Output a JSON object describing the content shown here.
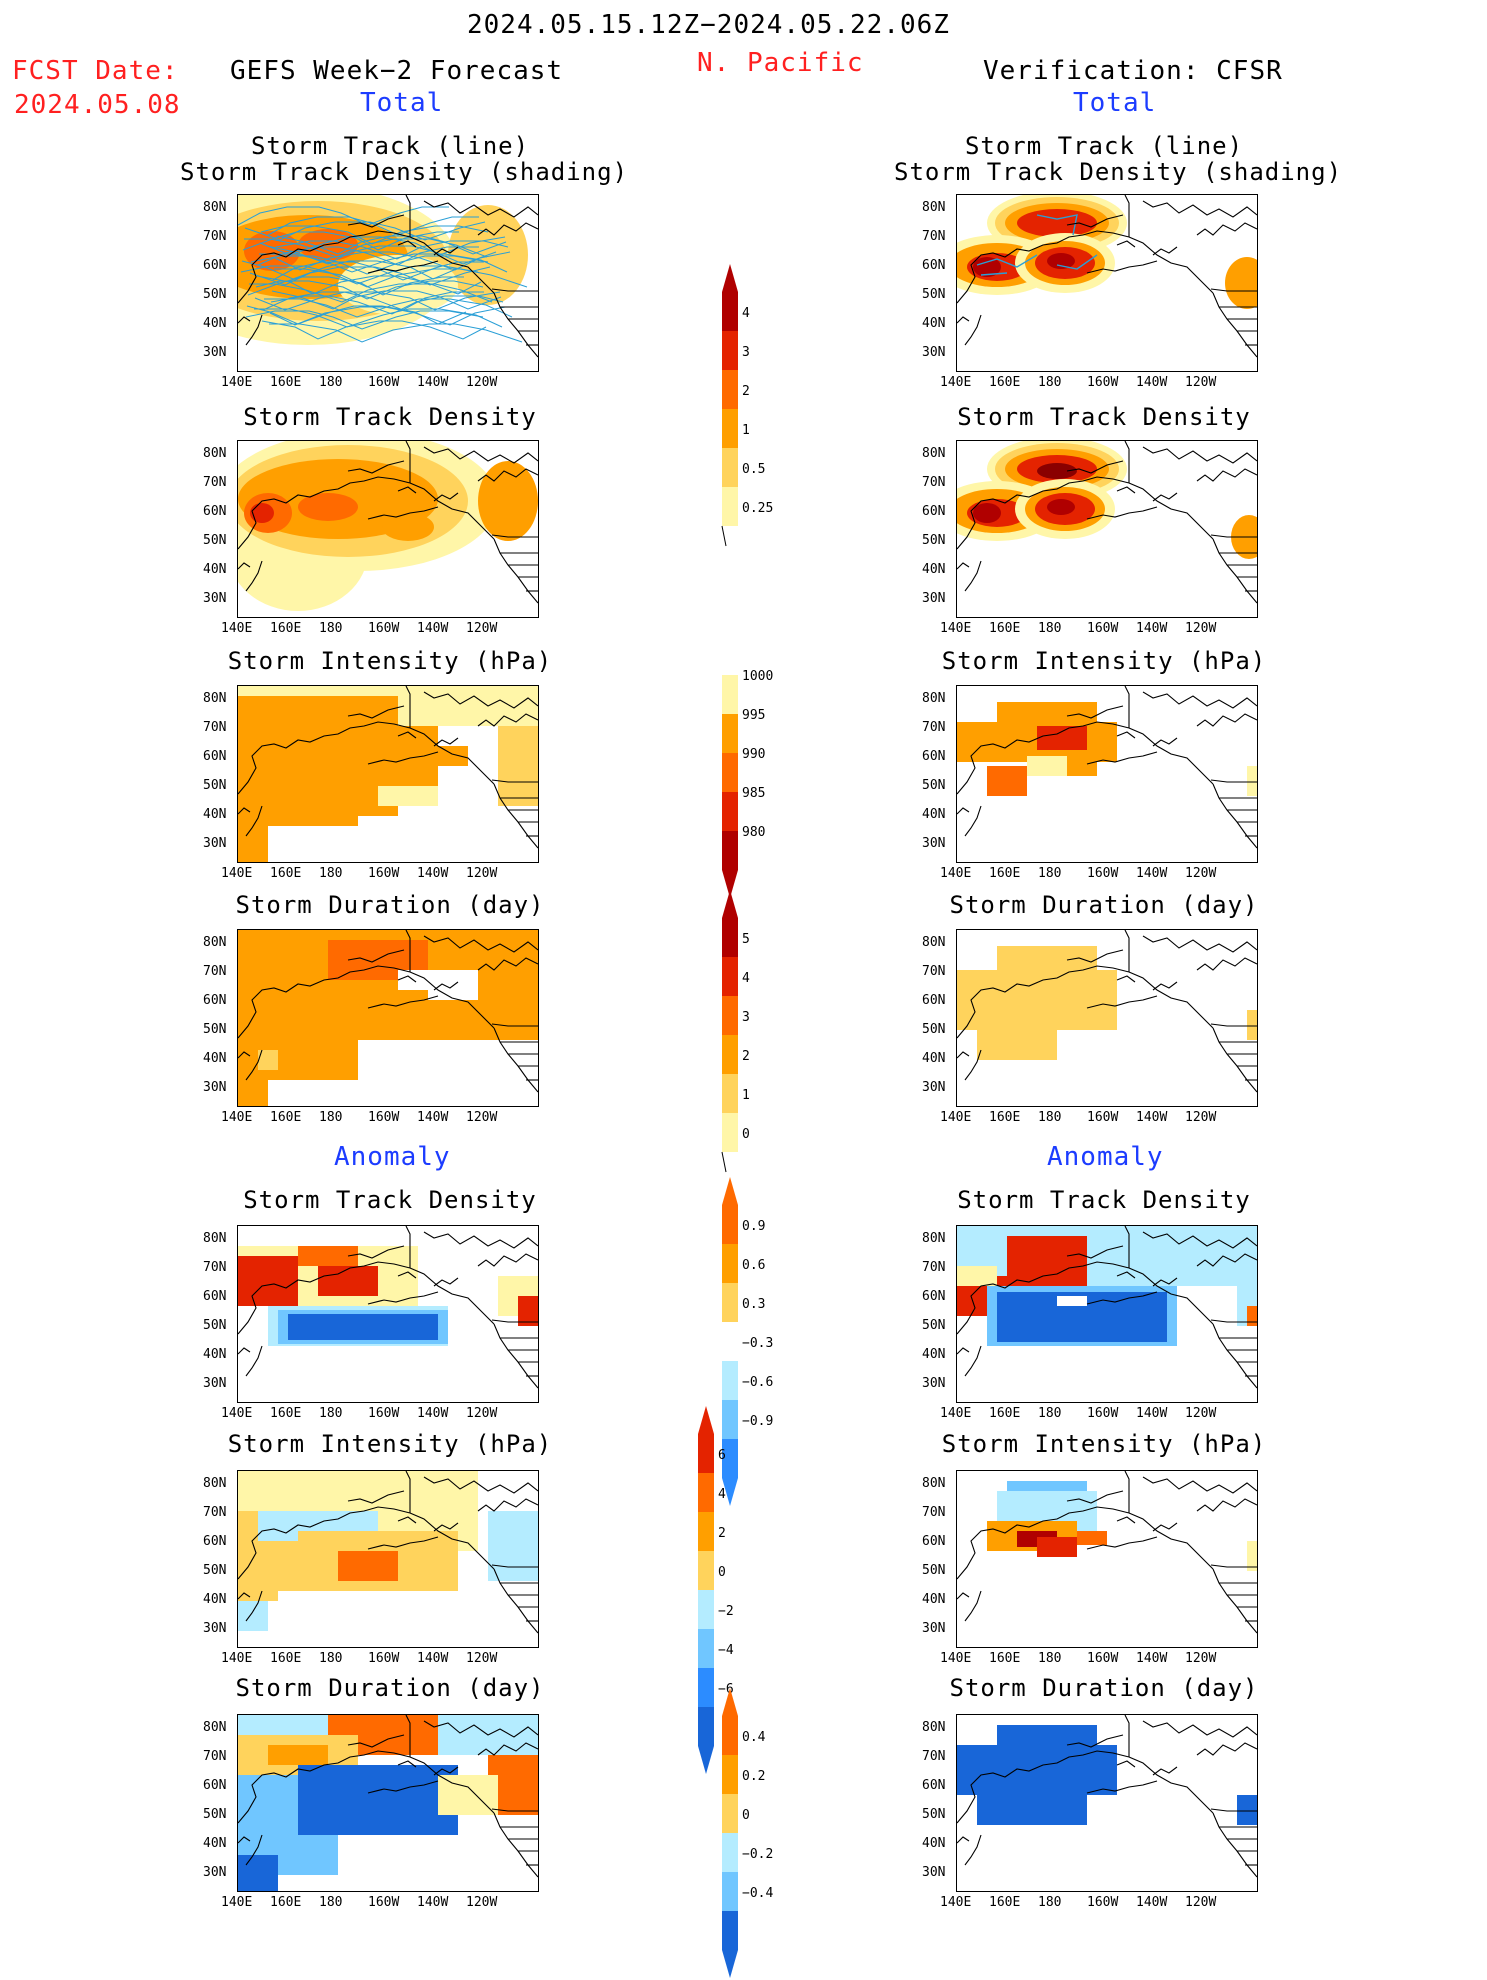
{
  "header": {
    "period": "2024.05.15.12Z−2024.05.22.06Z",
    "fcst_label": "FCST Date:",
    "fcst_date": "2024.05.08",
    "left_title": "GEFS Week−2 Forecast",
    "region": "N. Pacific",
    "right_title": "Verification: CFSR",
    "total_label": "Total",
    "anomaly_label": "Anomaly"
  },
  "panel_titles": {
    "track_line": "Storm Track (line)",
    "track_density_shading": "Storm Track Density (shading)",
    "track_density": "Storm Track Density",
    "intensity": "Storm Intensity (hPa)",
    "duration": "Storm Duration (day)"
  },
  "axes": {
    "lat_ticks": [
      "80N",
      "70N",
      "60N",
      "50N",
      "40N",
      "30N"
    ],
    "lon_ticks": [
      "140E",
      "160E",
      "180",
      "160W",
      "140W",
      "120W"
    ]
  },
  "colorbars": {
    "density": [
      "4",
      "3",
      "2",
      "1",
      "0.5",
      "0.25"
    ],
    "intensity": [
      "1000",
      "995",
      "990",
      "985",
      "980"
    ],
    "duration": [
      "5",
      "4",
      "3",
      "2",
      "1",
      "0"
    ],
    "density_anom": [
      "0.9",
      "0.6",
      "0.3",
      "−0.3",
      "−0.6",
      "−0.9"
    ],
    "intensity_anom": [
      "6",
      "4",
      "2",
      "0",
      "−2",
      "−4",
      "−6"
    ],
    "duration_anom": [
      "0.4",
      "0.2",
      "0",
      "−0.2",
      "−0.4"
    ]
  },
  "colors": {
    "lightyellow": "#fff6a8",
    "yellow": "#ffd35c",
    "orange": "#ff9f00",
    "orangered": "#ff6a00",
    "red": "#e42300",
    "darkred": "#b00000",
    "maroon": "#8a0000",
    "lightblue": "#b4ecff",
    "midblue": "#70c6ff",
    "blue": "#2c8cff",
    "darkblue": "#1866d8",
    "track": "#2a9fd6"
  }
}
